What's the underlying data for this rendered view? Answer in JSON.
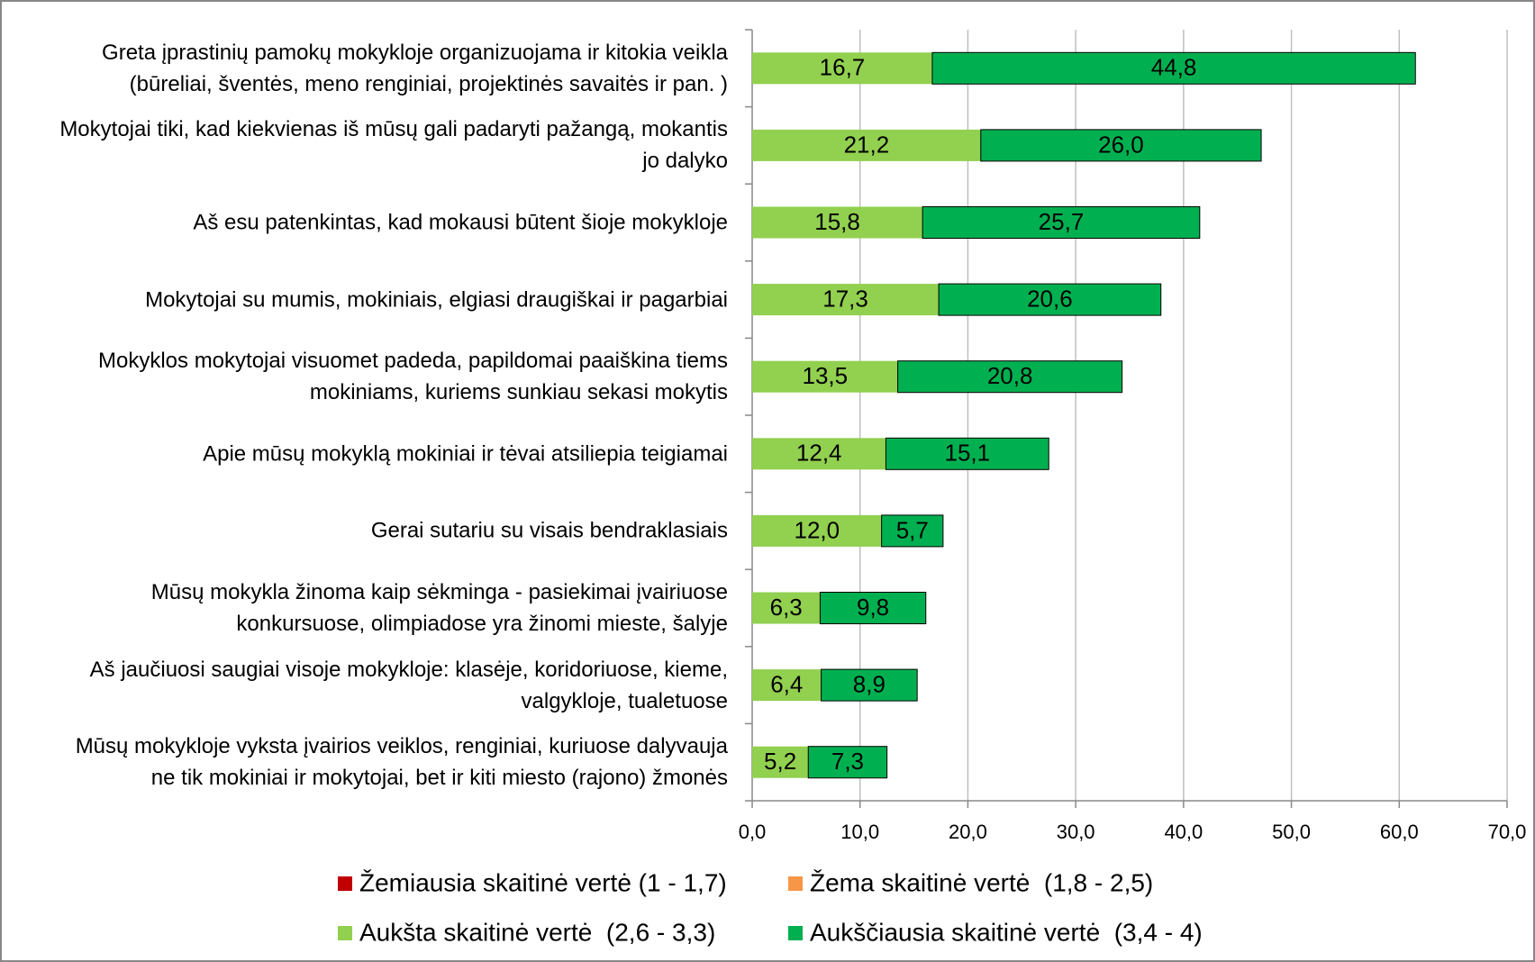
{
  "chart_data": {
    "type": "stacked_barh",
    "categories": [
      "Greta įprastinių pamokų mokykloje organizuojama  ir kitokia veikla\n(būreliai, šventės, meno renginiai, projektinės savaitės ir pan. )",
      "Mokytojai tiki, kad kiekvienas iš mūsų gali padaryti pažangą, mokantis\njo dalyko",
      "Aš esu patenkintas, kad mokausi būtent šioje mokykloje",
      "Mokytojai su mumis, mokiniais, elgiasi draugiškai ir pagarbiai",
      "Mokyklos mokytojai visuomet padeda, papildomai paaiškina tiems\nmokiniams, kuriems sunkiau sekasi mokytis",
      "Apie mūsų mokyklą mokiniai ir tėvai atsiliepia teigiamai",
      "Gerai sutariu su visais bendraklasiais",
      "Mūsų mokykla žinoma kaip sėkminga - pasiekimai įvairiuose\nkonkursuose, olimpiadose yra žinomi mieste, šalyje",
      "Aš jaučiuosi saugiai visoje mokykloje: klasėje, koridoriuose, kieme,\nvalgykloje, tualetuose",
      "Mūsų mokykloje vyksta įvairios veiklos, renginiai, kuriuose dalyvauja\nne tik mokiniai ir mokytojai, bet ir kiti miesto (rajono) žmonės"
    ],
    "series": [
      {
        "name": "Žemiausia skaitinė vertė (1 - 1,7)",
        "color": "#c00000",
        "values": [
          0,
          0,
          0,
          0,
          0,
          0,
          0,
          0,
          0,
          0
        ]
      },
      {
        "name": "Žema skaitinė vertė  (1,8 - 2,5)",
        "color": "#f79646",
        "values": [
          0,
          0,
          0,
          0,
          0,
          0,
          0,
          0,
          0,
          0
        ]
      },
      {
        "name": "Aukšta skaitinė vertė  (2,6 - 3,3)",
        "color": "#92d050",
        "values": [
          16.7,
          21.2,
          15.8,
          17.3,
          13.5,
          12.4,
          12.0,
          6.3,
          6.4,
          5.2
        ],
        "value_labels": [
          "16,7",
          "21,2",
          "15,8",
          "17,3",
          "13,5",
          "12,4",
          "12,0",
          "6,3",
          "6,4",
          "5,2"
        ]
      },
      {
        "name": "Aukščiausia skaitinė vertė  (3,4 - 4)",
        "color": "#00b050",
        "values": [
          44.8,
          26.0,
          25.7,
          20.6,
          20.8,
          15.1,
          5.7,
          9.8,
          8.9,
          7.3
        ],
        "value_labels": [
          "44,8",
          "26,0",
          "25,7",
          "20,6",
          "20,8",
          "15,1",
          "5,7",
          "9,8",
          "8,9",
          "7,3"
        ]
      }
    ],
    "xlim": [
      0,
      70
    ],
    "xticks": [
      {
        "value": 0,
        "label": "0,0"
      },
      {
        "value": 10,
        "label": "10,0"
      },
      {
        "value": 20,
        "label": "20,0"
      },
      {
        "value": 30,
        "label": "30,0"
      },
      {
        "value": 40,
        "label": "40,0"
      },
      {
        "value": 50,
        "label": "50,0"
      },
      {
        "value": 60,
        "label": "60,0"
      },
      {
        "value": 70,
        "label": "70,0"
      }
    ],
    "grid": true
  }
}
